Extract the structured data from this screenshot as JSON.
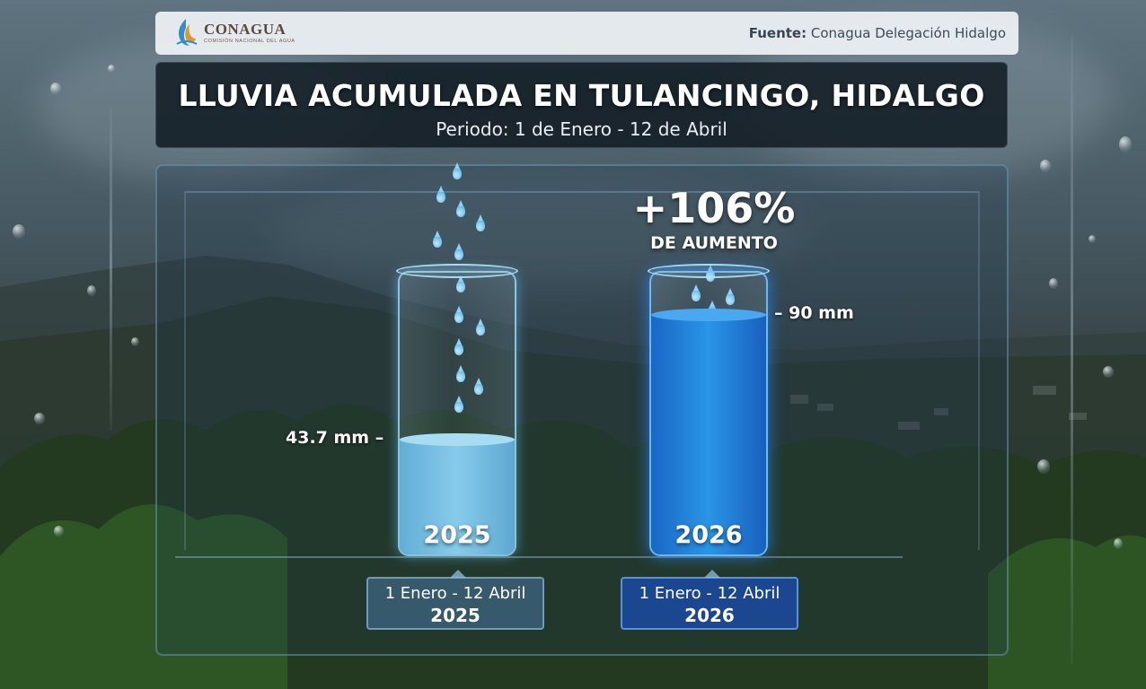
{
  "header": {
    "brand_name": "CONAGUA",
    "brand_sub": "COMISIÓN NACIONAL DEL AGUA",
    "source_label": "Fuente:",
    "source_value": "Conagua Delegación Hidalgo"
  },
  "title": "LLUVIA ACUMULADA EN TULANCINGO, HIDALGO",
  "subtitle": "Periodo: 1 de Enero - 12 de Abril",
  "chart_data": {
    "type": "bar",
    "categories": [
      "2025",
      "2026"
    ],
    "values": [
      43.7,
      90
    ],
    "unit": "mm",
    "value_labels": [
      "43.7 mm",
      "90 mm"
    ],
    "annotation": {
      "value": "+106%",
      "text": "DE AUMENTO"
    },
    "periods": [
      {
        "range": "1 Enero - 12 Abril",
        "year": "2025"
      },
      {
        "range": "1 Enero - 12 Abril",
        "year": "2026"
      }
    ],
    "colors": {
      "2025": "#7cc3e6",
      "2026": "#1f7fd8"
    }
  }
}
